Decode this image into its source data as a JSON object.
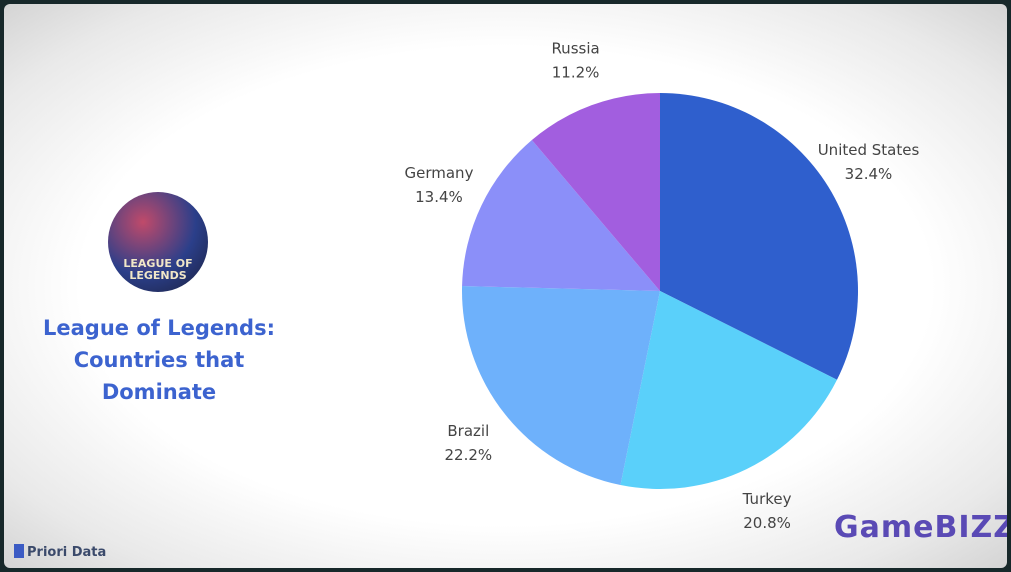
{
  "chart_data": {
    "type": "pie",
    "title": "League of Legends: Countries that Dominate",
    "logo_text": "LEAGUE OF LEGENDS",
    "source": "Priori Data",
    "watermark": "GameBIZZ",
    "categories": [
      "United States",
      "Turkey",
      "Brazil",
      "Germany",
      "Russia"
    ],
    "values": [
      32.4,
      20.8,
      22.2,
      13.4,
      11.2
    ],
    "value_labels": [
      "32.4%",
      "20.8%",
      "22.2%",
      "13.4%",
      "11.2%"
    ],
    "colors": [
      "#2f5fcd",
      "#5ad0fa",
      "#6eb1fb",
      "#8b8ff9",
      "#a25edf"
    ]
  }
}
